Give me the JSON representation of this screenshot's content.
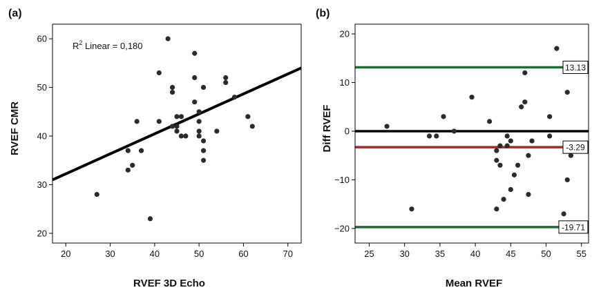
{
  "chart_data": [
    {
      "type": "scatter",
      "panel_label": "(a)",
      "xlabel": "RVEF 3D Echo",
      "ylabel": "RVEF CMR",
      "xlim": [
        17,
        73
      ],
      "ylim": [
        18,
        63
      ],
      "xticks": [
        20,
        30,
        40,
        50,
        60,
        70
      ],
      "yticks": [
        20,
        30,
        40,
        50,
        60
      ],
      "grid": false,
      "annotation": {
        "text": "R",
        "superscript": "2",
        "suffix": " Linear = 0,180"
      },
      "fit_line": {
        "x": [
          17,
          73
        ],
        "y": [
          31,
          54
        ]
      },
      "colors": {
        "points": "#2b2b2b",
        "fit_line": "#000000",
        "frame": "#000000"
      },
      "x": [
        27,
        34,
        34,
        35,
        36,
        37,
        39,
        41,
        41,
        43,
        44,
        44,
        44,
        45,
        45,
        45,
        46,
        46,
        47,
        49,
        49,
        49,
        50,
        50,
        50,
        50,
        51,
        51,
        51,
        51,
        54,
        56,
        56,
        58,
        61,
        62
      ],
      "y": [
        28,
        37,
        33,
        34,
        43,
        37,
        23,
        53,
        43,
        60,
        50,
        49,
        42,
        44,
        42,
        41,
        44,
        40,
        40,
        57,
        52,
        47,
        45,
        43,
        41,
        40,
        50,
        39,
        37,
        35,
        41,
        52,
        51,
        48,
        44,
        42
      ]
    },
    {
      "type": "scatter",
      "panel_label": "(b)",
      "xlabel": "Mean RVEF",
      "ylabel": "Diff RVEF",
      "xlim": [
        23,
        56
      ],
      "ylim": [
        -23,
        22
      ],
      "xticks": [
        25,
        30,
        35,
        40,
        45,
        50,
        55
      ],
      "yticks": [
        -20,
        -10,
        0,
        10,
        20
      ],
      "grid": false,
      "reference_lines": [
        {
          "y": 13.13,
          "label": "13.13",
          "color": "#1e6b35"
        },
        {
          "y": 0,
          "label": "",
          "color": "#000000"
        },
        {
          "y": -3.29,
          "label": "-3.29",
          "color": "#a52a2a"
        },
        {
          "y": -19.71,
          "label": "-19.71",
          "color": "#1e6b35"
        }
      ],
      "colors": {
        "points": "#2b2b2b",
        "frame": "#000000"
      },
      "x": [
        27.5,
        31,
        33.5,
        34.5,
        35.5,
        37,
        39.5,
        42,
        43,
        43,
        43,
        43.5,
        43.5,
        44,
        44.5,
        44.5,
        45,
        45,
        45.5,
        46,
        46.5,
        47,
        47,
        47.5,
        47.5,
        48,
        50.5,
        50.5,
        51.5,
        52.5,
        53,
        53,
        53.5
      ],
      "y": [
        1,
        -16,
        -1,
        -1,
        3,
        0,
        7,
        2,
        -4,
        -6,
        -16,
        -3,
        -7,
        -14,
        -1,
        -3,
        -2,
        -12,
        -9,
        -7,
        5,
        6,
        12,
        -5,
        -13,
        -2,
        3,
        -1,
        17,
        -17,
        8,
        -10,
        -5
      ]
    }
  ]
}
